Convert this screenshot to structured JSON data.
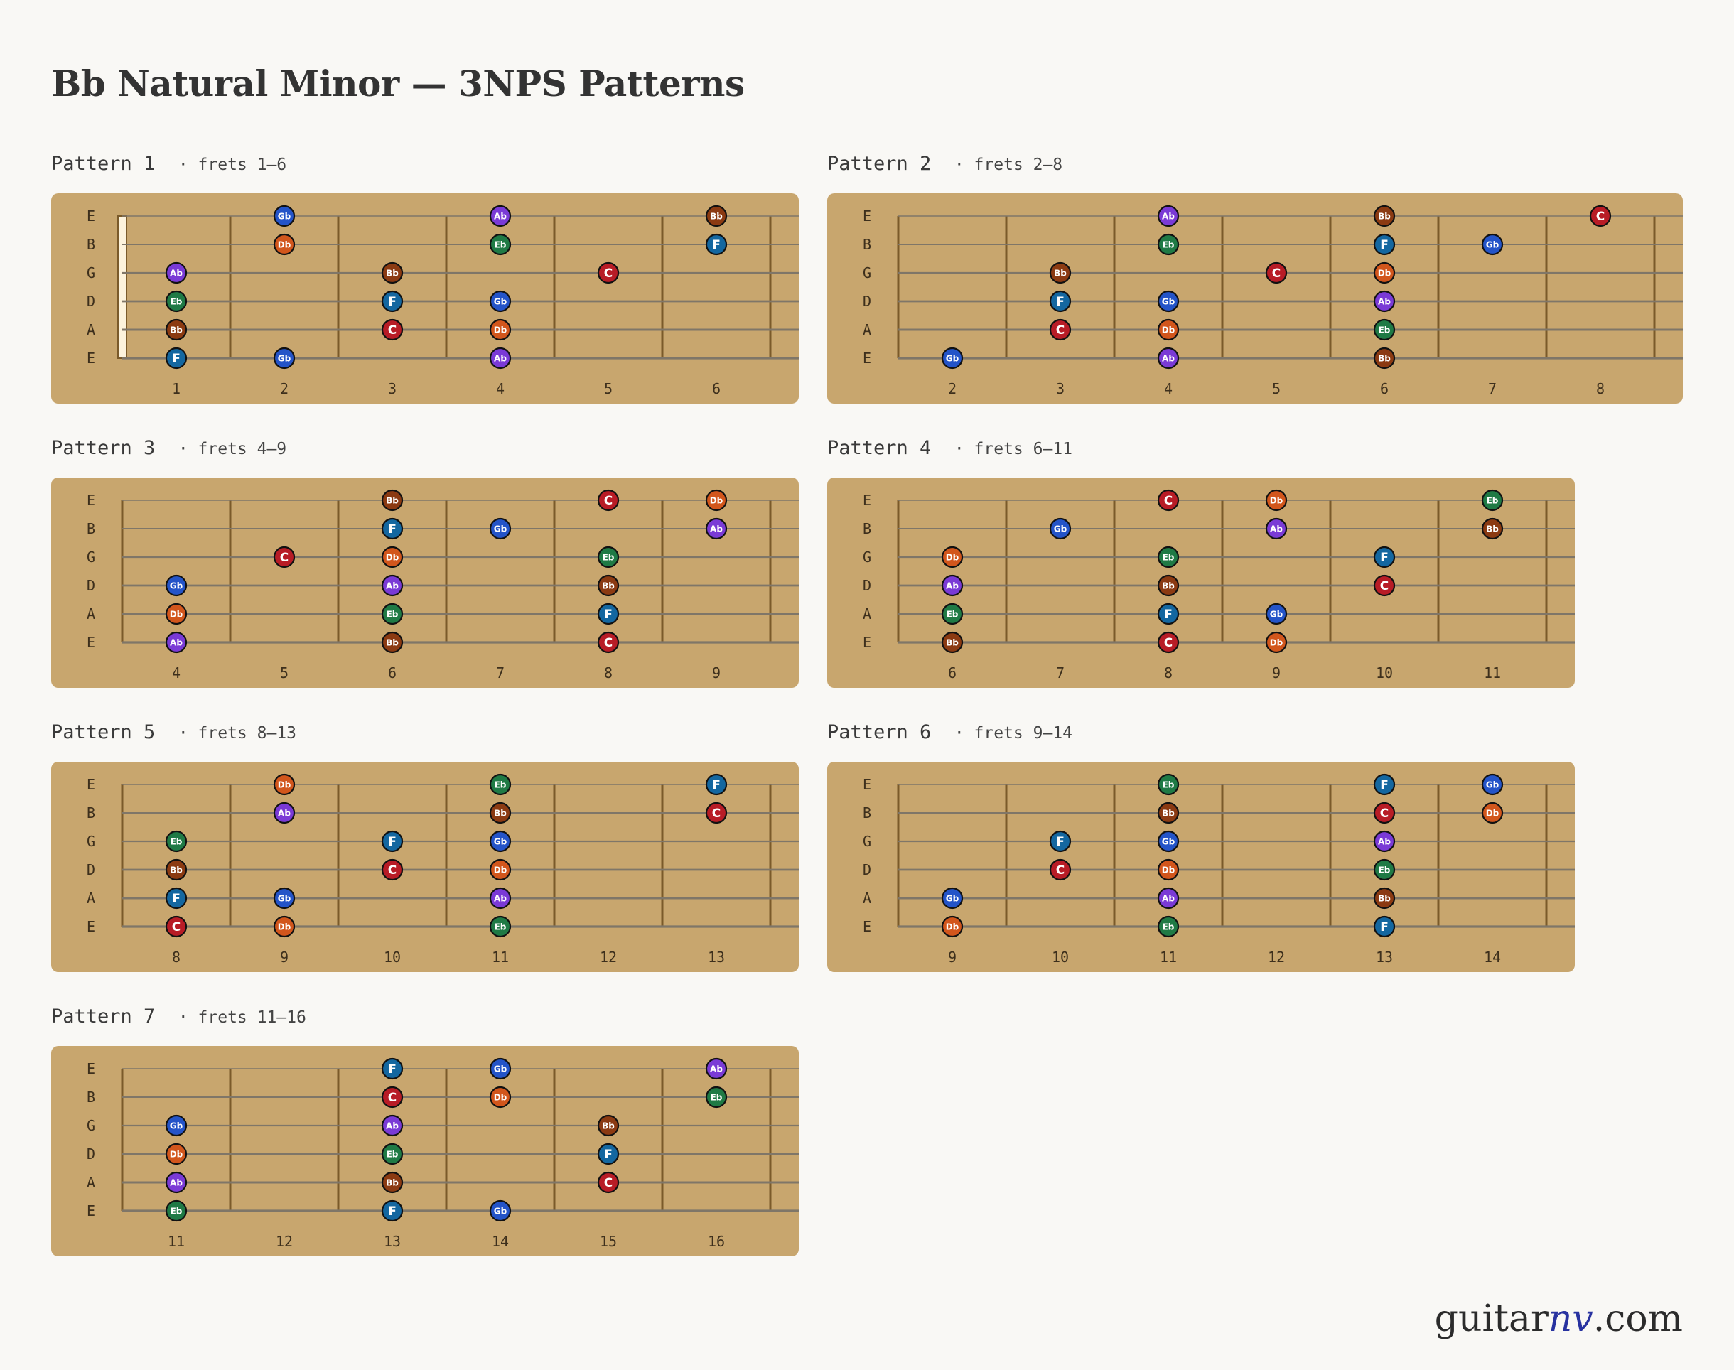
{
  "title": "Bb Natural Minor — 3NPS Patterns",
  "brand": {
    "pre": "guitar",
    "accent": "nv",
    "post": ".com"
  },
  "colors": {
    "background": "#f9f8f5",
    "fretboard": "#c8a66e",
    "Bb": "#8b3a12",
    "C": "#b81c26",
    "Db": "#d2561c",
    "Eb": "#1f7a45",
    "F": "#1467a0",
    "Gb": "#2454c8",
    "Ab": "#7a3ad6"
  },
  "string_labels": [
    "E",
    "B",
    "G",
    "D",
    "A",
    "E"
  ],
  "patterns": [
    {
      "label": "Pattern 1",
      "subtitle": "· frets 1–6",
      "frets": [
        1,
        2,
        3,
        4,
        5,
        6
      ],
      "nut": true,
      "notes": [
        {
          "string": 1,
          "fret": 2,
          "note": "Gb"
        },
        {
          "string": 1,
          "fret": 4,
          "note": "Ab"
        },
        {
          "string": 1,
          "fret": 6,
          "note": "Bb"
        },
        {
          "string": 2,
          "fret": 2,
          "note": "Db"
        },
        {
          "string": 2,
          "fret": 4,
          "note": "Eb"
        },
        {
          "string": 2,
          "fret": 6,
          "note": "F"
        },
        {
          "string": 3,
          "fret": 1,
          "note": "Ab"
        },
        {
          "string": 3,
          "fret": 3,
          "note": "Bb"
        },
        {
          "string": 3,
          "fret": 5,
          "note": "C"
        },
        {
          "string": 4,
          "fret": 1,
          "note": "Eb"
        },
        {
          "string": 4,
          "fret": 3,
          "note": "F"
        },
        {
          "string": 4,
          "fret": 4,
          "note": "Gb"
        },
        {
          "string": 5,
          "fret": 1,
          "note": "Bb"
        },
        {
          "string": 5,
          "fret": 3,
          "note": "C"
        },
        {
          "string": 5,
          "fret": 4,
          "note": "Db"
        },
        {
          "string": 6,
          "fret": 1,
          "note": "F"
        },
        {
          "string": 6,
          "fret": 2,
          "note": "Gb"
        },
        {
          "string": 6,
          "fret": 4,
          "note": "Ab"
        }
      ]
    },
    {
      "label": "Pattern 2",
      "subtitle": "· frets 2–8",
      "frets": [
        2,
        3,
        4,
        5,
        6,
        7,
        8
      ],
      "nut": false,
      "notes": [
        {
          "string": 1,
          "fret": 4,
          "note": "Ab"
        },
        {
          "string": 1,
          "fret": 6,
          "note": "Bb"
        },
        {
          "string": 1,
          "fret": 8,
          "note": "C"
        },
        {
          "string": 2,
          "fret": 4,
          "note": "Eb"
        },
        {
          "string": 2,
          "fret": 6,
          "note": "F"
        },
        {
          "string": 2,
          "fret": 7,
          "note": "Gb"
        },
        {
          "string": 3,
          "fret": 3,
          "note": "Bb"
        },
        {
          "string": 3,
          "fret": 5,
          "note": "C"
        },
        {
          "string": 3,
          "fret": 6,
          "note": "Db"
        },
        {
          "string": 4,
          "fret": 3,
          "note": "F"
        },
        {
          "string": 4,
          "fret": 4,
          "note": "Gb"
        },
        {
          "string": 4,
          "fret": 6,
          "note": "Ab"
        },
        {
          "string": 5,
          "fret": 3,
          "note": "C"
        },
        {
          "string": 5,
          "fret": 4,
          "note": "Db"
        },
        {
          "string": 5,
          "fret": 6,
          "note": "Eb"
        },
        {
          "string": 6,
          "fret": 2,
          "note": "Gb"
        },
        {
          "string": 6,
          "fret": 4,
          "note": "Ab"
        },
        {
          "string": 6,
          "fret": 6,
          "note": "Bb"
        }
      ]
    },
    {
      "label": "Pattern 3",
      "subtitle": "· frets 4–9",
      "frets": [
        4,
        5,
        6,
        7,
        8,
        9
      ],
      "nut": false,
      "notes": [
        {
          "string": 1,
          "fret": 6,
          "note": "Bb"
        },
        {
          "string": 1,
          "fret": 8,
          "note": "C"
        },
        {
          "string": 1,
          "fret": 9,
          "note": "Db"
        },
        {
          "string": 2,
          "fret": 6,
          "note": "F"
        },
        {
          "string": 2,
          "fret": 7,
          "note": "Gb"
        },
        {
          "string": 2,
          "fret": 9,
          "note": "Ab"
        },
        {
          "string": 3,
          "fret": 5,
          "note": "C"
        },
        {
          "string": 3,
          "fret": 6,
          "note": "Db"
        },
        {
          "string": 3,
          "fret": 8,
          "note": "Eb"
        },
        {
          "string": 4,
          "fret": 4,
          "note": "Gb"
        },
        {
          "string": 4,
          "fret": 6,
          "note": "Ab"
        },
        {
          "string": 4,
          "fret": 8,
          "note": "Bb"
        },
        {
          "string": 5,
          "fret": 4,
          "note": "Db"
        },
        {
          "string": 5,
          "fret": 6,
          "note": "Eb"
        },
        {
          "string": 5,
          "fret": 8,
          "note": "F"
        },
        {
          "string": 6,
          "fret": 4,
          "note": "Ab"
        },
        {
          "string": 6,
          "fret": 6,
          "note": "Bb"
        },
        {
          "string": 6,
          "fret": 8,
          "note": "C"
        }
      ]
    },
    {
      "label": "Pattern 4",
      "subtitle": "· frets 6–11",
      "frets": [
        6,
        7,
        8,
        9,
        10,
        11
      ],
      "nut": false,
      "notes": [
        {
          "string": 1,
          "fret": 8,
          "note": "C"
        },
        {
          "string": 1,
          "fret": 9,
          "note": "Db"
        },
        {
          "string": 1,
          "fret": 11,
          "note": "Eb"
        },
        {
          "string": 2,
          "fret": 7,
          "note": "Gb"
        },
        {
          "string": 2,
          "fret": 9,
          "note": "Ab"
        },
        {
          "string": 2,
          "fret": 11,
          "note": "Bb"
        },
        {
          "string": 3,
          "fret": 6,
          "note": "Db"
        },
        {
          "string": 3,
          "fret": 8,
          "note": "Eb"
        },
        {
          "string": 3,
          "fret": 10,
          "note": "F"
        },
        {
          "string": 4,
          "fret": 6,
          "note": "Ab"
        },
        {
          "string": 4,
          "fret": 8,
          "note": "Bb"
        },
        {
          "string": 4,
          "fret": 10,
          "note": "C"
        },
        {
          "string": 5,
          "fret": 6,
          "note": "Eb"
        },
        {
          "string": 5,
          "fret": 8,
          "note": "F"
        },
        {
          "string": 5,
          "fret": 9,
          "note": "Gb"
        },
        {
          "string": 6,
          "fret": 6,
          "note": "Bb"
        },
        {
          "string": 6,
          "fret": 8,
          "note": "C"
        },
        {
          "string": 6,
          "fret": 9,
          "note": "Db"
        }
      ]
    },
    {
      "label": "Pattern 5",
      "subtitle": "· frets 8–13",
      "frets": [
        8,
        9,
        10,
        11,
        12,
        13
      ],
      "nut": false,
      "notes": [
        {
          "string": 1,
          "fret": 9,
          "note": "Db"
        },
        {
          "string": 1,
          "fret": 11,
          "note": "Eb"
        },
        {
          "string": 1,
          "fret": 13,
          "note": "F"
        },
        {
          "string": 2,
          "fret": 9,
          "note": "Ab"
        },
        {
          "string": 2,
          "fret": 11,
          "note": "Bb"
        },
        {
          "string": 2,
          "fret": 13,
          "note": "C"
        },
        {
          "string": 3,
          "fret": 8,
          "note": "Eb"
        },
        {
          "string": 3,
          "fret": 10,
          "note": "F"
        },
        {
          "string": 3,
          "fret": 11,
          "note": "Gb"
        },
        {
          "string": 4,
          "fret": 8,
          "note": "Bb"
        },
        {
          "string": 4,
          "fret": 10,
          "note": "C"
        },
        {
          "string": 4,
          "fret": 11,
          "note": "Db"
        },
        {
          "string": 5,
          "fret": 8,
          "note": "F"
        },
        {
          "string": 5,
          "fret": 9,
          "note": "Gb"
        },
        {
          "string": 5,
          "fret": 11,
          "note": "Ab"
        },
        {
          "string": 6,
          "fret": 8,
          "note": "C"
        },
        {
          "string": 6,
          "fret": 9,
          "note": "Db"
        },
        {
          "string": 6,
          "fret": 11,
          "note": "Eb"
        }
      ]
    },
    {
      "label": "Pattern 6",
      "subtitle": "· frets 9–14",
      "frets": [
        9,
        10,
        11,
        12,
        13,
        14
      ],
      "nut": false,
      "notes": [
        {
          "string": 1,
          "fret": 11,
          "note": "Eb"
        },
        {
          "string": 1,
          "fret": 13,
          "note": "F"
        },
        {
          "string": 1,
          "fret": 14,
          "note": "Gb"
        },
        {
          "string": 2,
          "fret": 11,
          "note": "Bb"
        },
        {
          "string": 2,
          "fret": 13,
          "note": "C"
        },
        {
          "string": 2,
          "fret": 14,
          "note": "Db"
        },
        {
          "string": 3,
          "fret": 10,
          "note": "F"
        },
        {
          "string": 3,
          "fret": 11,
          "note": "Gb"
        },
        {
          "string": 3,
          "fret": 13,
          "note": "Ab"
        },
        {
          "string": 4,
          "fret": 10,
          "note": "C"
        },
        {
          "string": 4,
          "fret": 11,
          "note": "Db"
        },
        {
          "string": 4,
          "fret": 13,
          "note": "Eb"
        },
        {
          "string": 5,
          "fret": 9,
          "note": "Gb"
        },
        {
          "string": 5,
          "fret": 11,
          "note": "Ab"
        },
        {
          "string": 5,
          "fret": 13,
          "note": "Bb"
        },
        {
          "string": 6,
          "fret": 9,
          "note": "Db"
        },
        {
          "string": 6,
          "fret": 11,
          "note": "Eb"
        },
        {
          "string": 6,
          "fret": 13,
          "note": "F"
        }
      ]
    },
    {
      "label": "Pattern 7",
      "subtitle": "· frets 11–16",
      "frets": [
        11,
        12,
        13,
        14,
        15,
        16
      ],
      "nut": false,
      "notes": [
        {
          "string": 1,
          "fret": 13,
          "note": "F"
        },
        {
          "string": 1,
          "fret": 14,
          "note": "Gb"
        },
        {
          "string": 1,
          "fret": 16,
          "note": "Ab"
        },
        {
          "string": 2,
          "fret": 13,
          "note": "C"
        },
        {
          "string": 2,
          "fret": 14,
          "note": "Db"
        },
        {
          "string": 2,
          "fret": 16,
          "note": "Eb"
        },
        {
          "string": 3,
          "fret": 11,
          "note": "Gb"
        },
        {
          "string": 3,
          "fret": 13,
          "note": "Ab"
        },
        {
          "string": 3,
          "fret": 15,
          "note": "Bb"
        },
        {
          "string": 4,
          "fret": 11,
          "note": "Db"
        },
        {
          "string": 4,
          "fret": 13,
          "note": "Eb"
        },
        {
          "string": 4,
          "fret": 15,
          "note": "F"
        },
        {
          "string": 5,
          "fret": 11,
          "note": "Ab"
        },
        {
          "string": 5,
          "fret": 13,
          "note": "Bb"
        },
        {
          "string": 5,
          "fret": 15,
          "note": "C"
        },
        {
          "string": 6,
          "fret": 11,
          "note": "Eb"
        },
        {
          "string": 6,
          "fret": 13,
          "note": "F"
        },
        {
          "string": 6,
          "fret": 14,
          "note": "Gb"
        }
      ]
    }
  ]
}
